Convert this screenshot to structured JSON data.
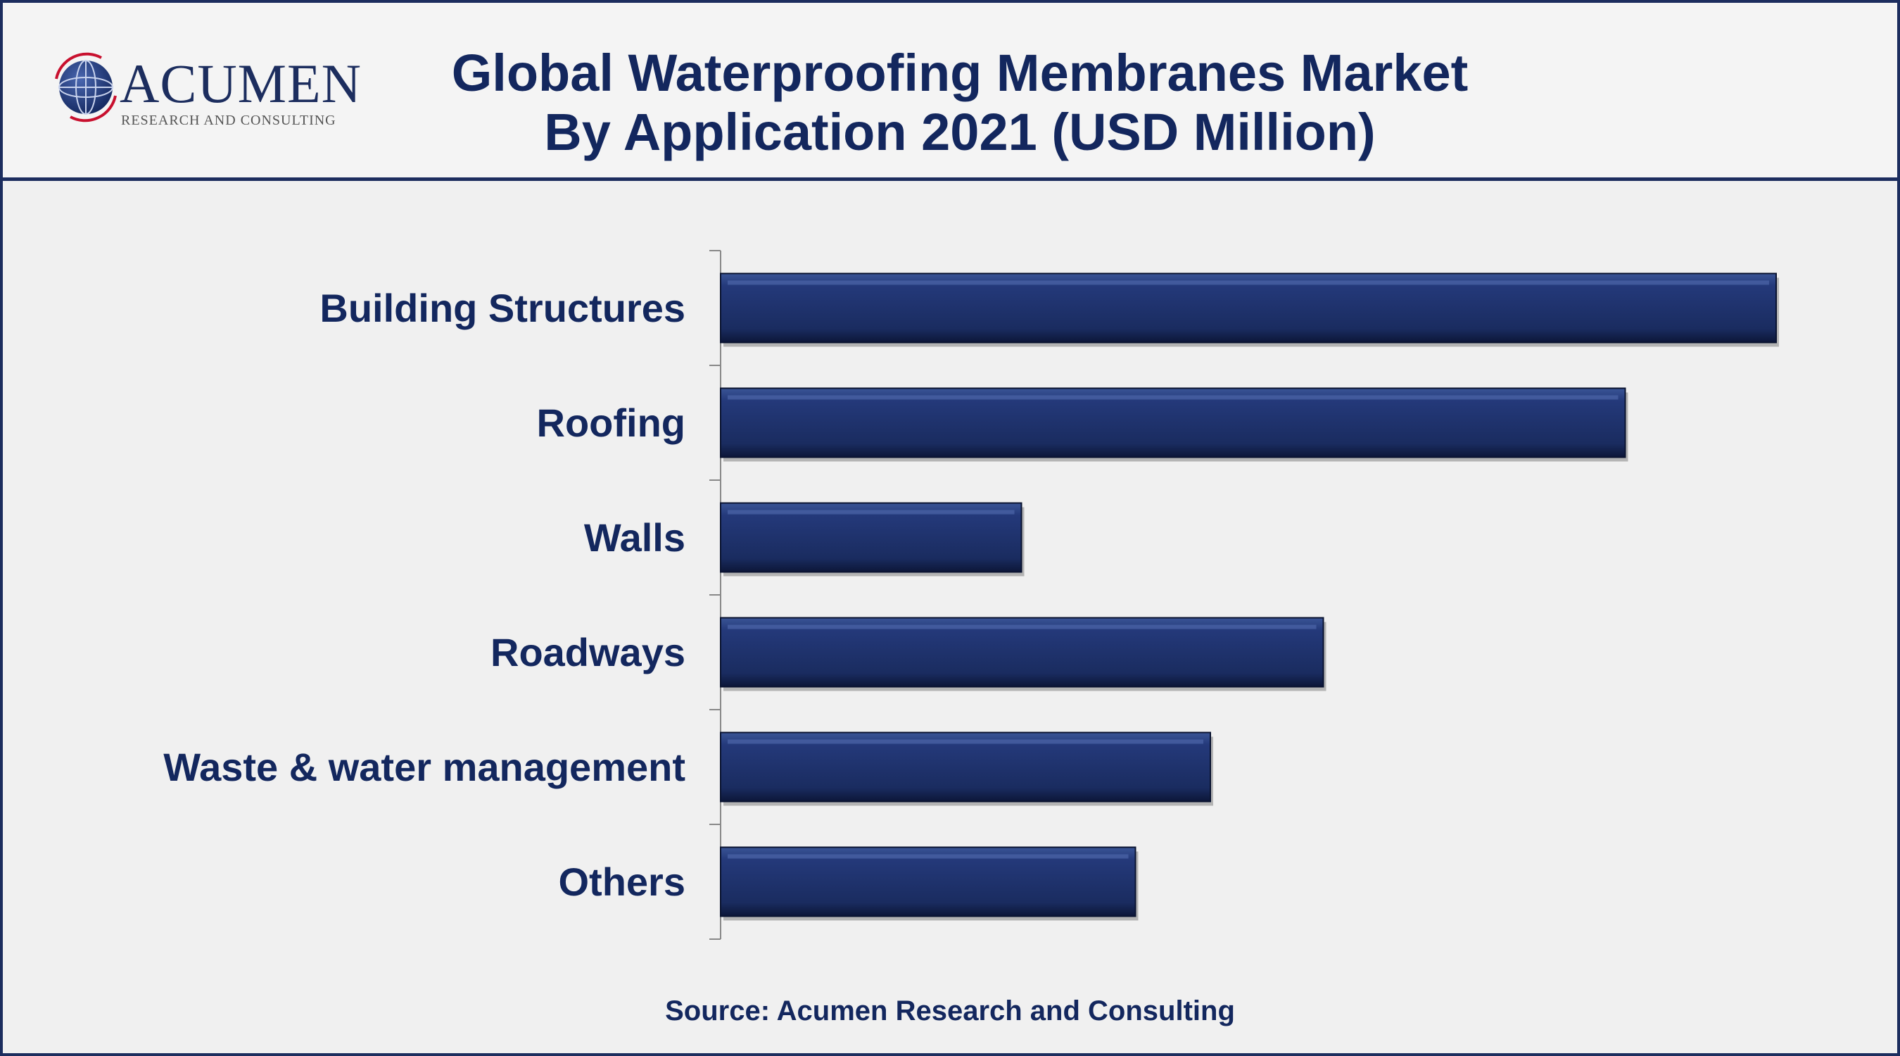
{
  "header": {
    "title_line1": "Global Waterproofing Membranes Market",
    "title_line2": "By Application 2021 (USD Million)",
    "logo_name": "ACUMEN",
    "logo_tagline": "RESEARCH AND CONSULTING",
    "logo_icon": "globe-icon"
  },
  "chart_data": {
    "type": "bar",
    "orientation": "horizontal",
    "title": "Global Waterproofing Membranes Market By Application 2021 (USD Million)",
    "categories": [
      "Building Structures",
      "Roofing",
      "Walls",
      "Roadways",
      "Waste & water management",
      "Others"
    ],
    "values": [
      100,
      85.7,
      28.5,
      57.1,
      46.4,
      39.3
    ],
    "xlim": [
      0,
      100
    ],
    "grid": false,
    "legend": "none",
    "bar_color": "#1c2d5e"
  },
  "footer": {
    "source": "Source: Acumen Research and Consulting"
  }
}
